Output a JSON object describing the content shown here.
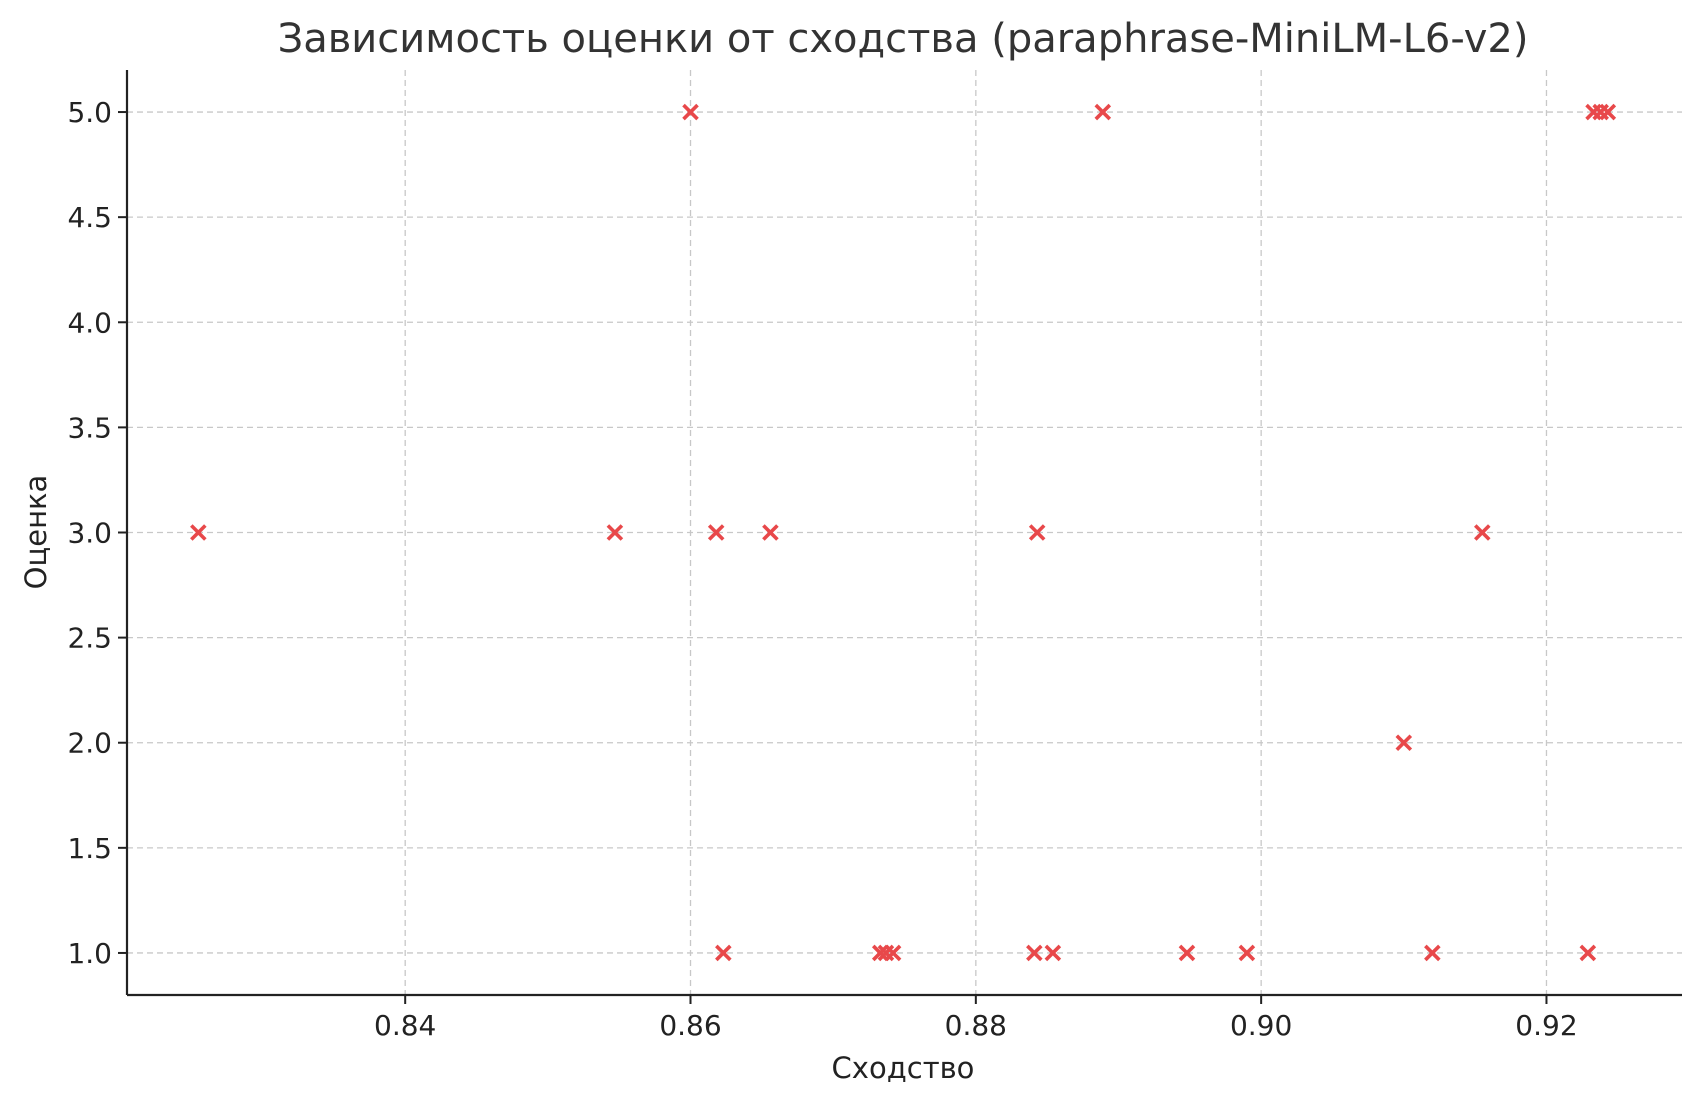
{
  "chart_data": {
    "type": "scatter",
    "title": "Зависимость оценки от сходства (paraphrase-MiniLM-L6-v2)",
    "xlabel": "Сходство",
    "ylabel": "Оценка",
    "xlim": [
      0.8205,
      0.9295
    ],
    "ylim": [
      0.8,
      5.2
    ],
    "xticks": [
      "0.84",
      "0.86",
      "0.88",
      "0.90",
      "0.92"
    ],
    "yticks": [
      "1.0",
      "1.5",
      "2.0",
      "2.5",
      "3.0",
      "3.5",
      "4.0",
      "4.5",
      "5.0"
    ],
    "grid": true,
    "marker": "x",
    "color": "#e8484a",
    "points": [
      {
        "x": 0.8255,
        "y": 3.0
      },
      {
        "x": 0.8547,
        "y": 3.0
      },
      {
        "x": 0.86,
        "y": 5.0
      },
      {
        "x": 0.8618,
        "y": 3.0
      },
      {
        "x": 0.8623,
        "y": 1.0
      },
      {
        "x": 0.8656,
        "y": 3.0
      },
      {
        "x": 0.8733,
        "y": 1.0
      },
      {
        "x": 0.8737,
        "y": 1.0
      },
      {
        "x": 0.8742,
        "y": 1.0
      },
      {
        "x": 0.8841,
        "y": 1.0
      },
      {
        "x": 0.8843,
        "y": 3.0
      },
      {
        "x": 0.8854,
        "y": 1.0
      },
      {
        "x": 0.8889,
        "y": 5.0
      },
      {
        "x": 0.8948,
        "y": 1.0
      },
      {
        "x": 0.899,
        "y": 1.0
      },
      {
        "x": 0.91,
        "y": 2.0
      },
      {
        "x": 0.912,
        "y": 1.0
      },
      {
        "x": 0.9155,
        "y": 3.0
      },
      {
        "x": 0.9229,
        "y": 1.0
      },
      {
        "x": 0.9233,
        "y": 5.0
      },
      {
        "x": 0.9238,
        "y": 5.0
      },
      {
        "x": 0.9243,
        "y": 5.0
      }
    ]
  }
}
